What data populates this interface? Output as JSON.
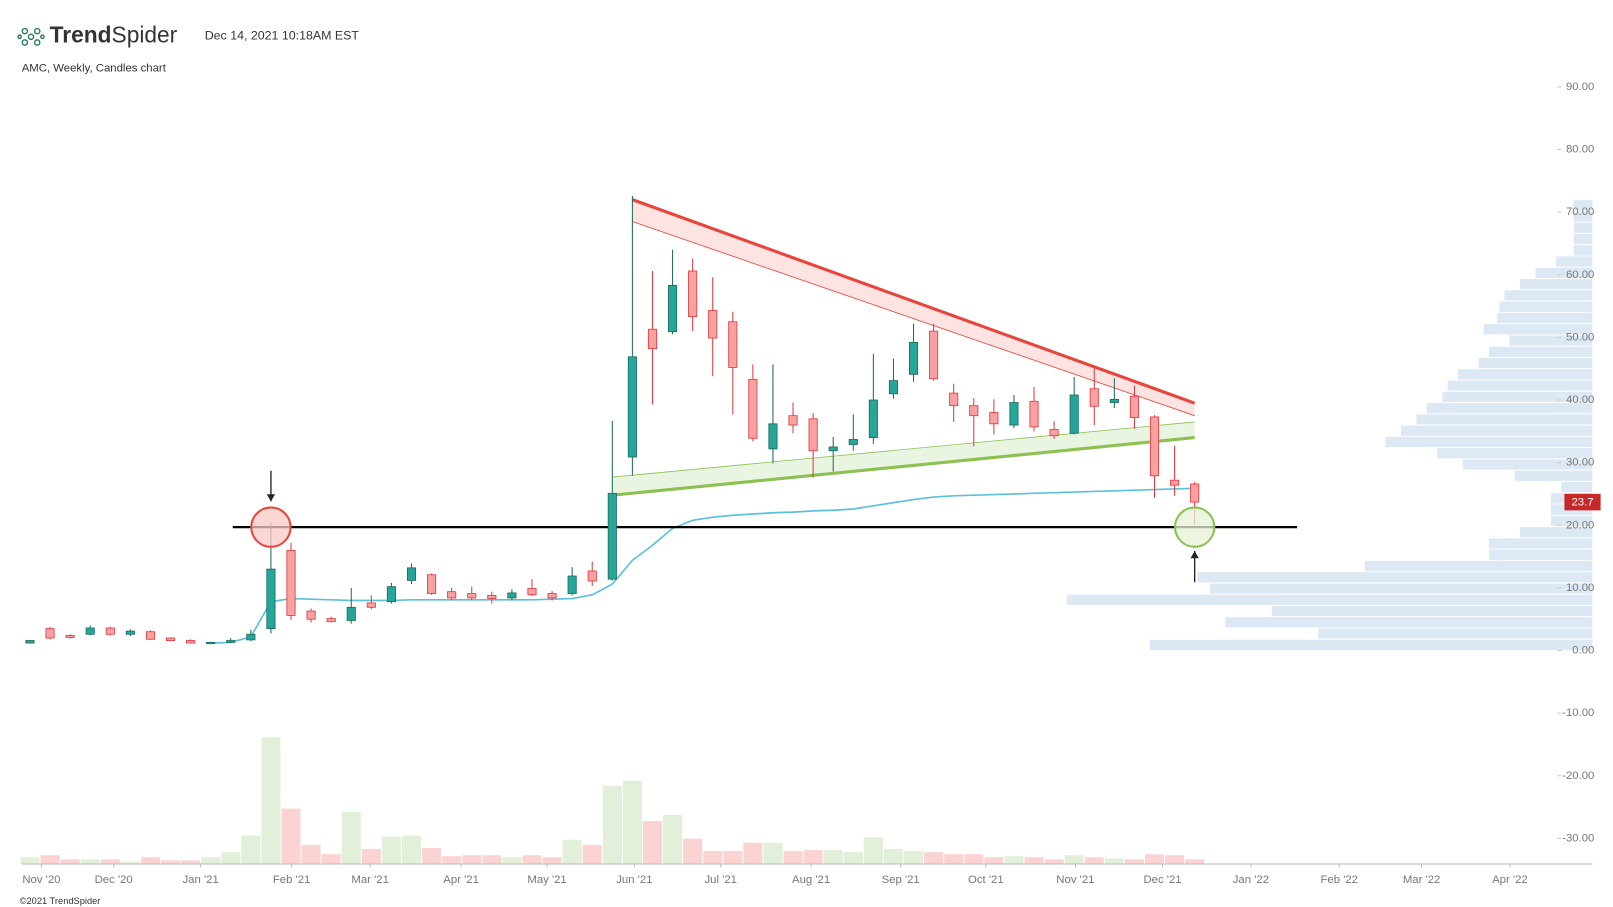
{
  "header": {
    "brand": {
      "bold": "Trend",
      "light": "Spider"
    },
    "timestamp": "Dec 14, 2021 10:18AM EST",
    "subtitle": "AMC, Weekly, Candles chart",
    "footer": "©2021 TrendSpider"
  },
  "chart_data": {
    "type": "candlestick",
    "x": [
      0,
      1,
      2,
      3,
      4,
      5,
      6,
      7,
      8,
      9,
      10,
      11,
      12,
      13,
      14,
      15,
      16,
      17,
      18,
      19,
      20,
      21,
      22,
      23,
      24,
      25,
      26,
      27,
      28,
      29,
      30,
      31,
      32,
      33,
      34,
      35,
      36,
      37,
      38,
      39,
      40,
      41,
      42,
      43,
      44,
      45,
      46,
      47,
      48,
      49,
      50,
      51,
      52,
      53,
      54,
      55,
      56,
      57,
      58
    ],
    "open": [
      1.2,
      3.5,
      2.4,
      2.6,
      3.6,
      2.6,
      3.0,
      2.0,
      1.6,
      1.1,
      1.3,
      1.7,
      3.5,
      16.0,
      6.3,
      5.1,
      4.8,
      7.6,
      7.8,
      11.2,
      12.1,
      9.4,
      9.1,
      8.8,
      8.4,
      9.9,
      9.1,
      9.1,
      12.7,
      11.4,
      30.9,
      51.3,
      50.9,
      60.6,
      54.3,
      52.5,
      43.3,
      32.2,
      37.5,
      37.0,
      31.9,
      32.9,
      34.0,
      41.0,
      44.1,
      51.0,
      41.1,
      39.1,
      38.0,
      36.0,
      39.8,
      35.3,
      34.7,
      41.8,
      39.6,
      40.6,
      37.3,
      27.2,
      26.6
    ],
    "high": [
      1.7,
      3.8,
      2.6,
      4.0,
      3.8,
      3.4,
      3.2,
      2.1,
      1.8,
      1.4,
      2.0,
      3.3,
      20.4,
      17.2,
      6.7,
      5.4,
      10.0,
      8.8,
      10.8,
      13.9,
      12.3,
      10.0,
      10.2,
      9.4,
      9.8,
      11.4,
      9.5,
      13.3,
      14.2,
      36.7,
      72.6,
      60.6,
      64.0,
      62.6,
      59.6,
      54.1,
      45.7,
      45.7,
      39.6,
      37.9,
      34.1,
      37.7,
      47.4,
      46.6,
      52.2,
      52.2,
      42.6,
      40.3,
      40.1,
      40.8,
      42.1,
      36.6,
      43.7,
      45.2,
      43.5,
      42.3,
      37.6,
      32.7,
      26.9
    ],
    "low": [
      1.1,
      1.8,
      1.9,
      2.4,
      2.4,
      2.3,
      1.7,
      1.5,
      1.1,
      1.0,
      1.2,
      1.5,
      2.7,
      4.9,
      4.5,
      4.5,
      4.3,
      6.6,
      7.5,
      10.6,
      8.9,
      8.0,
      8.1,
      7.5,
      8.0,
      8.7,
      8.0,
      8.8,
      10.3,
      11.2,
      27.9,
      39.3,
      50.5,
      51.0,
      43.8,
      37.7,
      33.4,
      29.9,
      34.7,
      27.6,
      28.6,
      31.9,
      33.0,
      40.2,
      42.9,
      43.1,
      36.5,
      32.6,
      34.5,
      35.5,
      35.0,
      33.8,
      34.5,
      36.0,
      38.7,
      35.4,
      24.4,
      24.7,
      20.1
    ],
    "close": [
      1.6,
      2.0,
      2.1,
      3.6,
      2.6,
      3.1,
      1.8,
      1.6,
      1.2,
      1.3,
      1.6,
      2.6,
      13.0,
      5.6,
      5.0,
      4.6,
      6.9,
      6.9,
      10.2,
      13.2,
      9.1,
      8.4,
      8.4,
      8.3,
      9.2,
      8.9,
      8.4,
      11.9,
      11.1,
      25.1,
      46.9,
      48.2,
      58.3,
      53.3,
      49.9,
      45.2,
      33.9,
      36.2,
      36.0,
      31.9,
      32.5,
      33.7,
      40.0,
      43.1,
      49.2,
      43.4,
      39.1,
      37.5,
      36.2,
      39.6,
      35.7,
      34.3,
      40.8,
      39.0,
      40.1,
      37.2,
      27.9,
      26.4,
      23.7
    ],
    "up_color": "#26a69a",
    "up_edge": "#1d6b5c",
    "down_color": "#f7a1a1",
    "down_edge": "#e0393e",
    "moving_average": {
      "color": "#5bc0de",
      "values": [
        null,
        null,
        null,
        null,
        null,
        null,
        null,
        null,
        null,
        1.2,
        1.3,
        2.2,
        7.8,
        8.3,
        8.2,
        8.1,
        8.0,
        8.0,
        8.0,
        8.1,
        8.1,
        8.1,
        8.1,
        8.1,
        8.1,
        8.1,
        8.2,
        8.3,
        8.9,
        10.6,
        14.4,
        16.8,
        19.5,
        20.8,
        21.3,
        21.6,
        21.8,
        22.0,
        22.1,
        22.3,
        22.4,
        22.6,
        23.1,
        23.6,
        24.1,
        24.5,
        24.7,
        24.8,
        24.9,
        25.0,
        25.1,
        25.2,
        25.3,
        25.4,
        25.5,
        25.6,
        25.7,
        25.8,
        25.9
      ]
    },
    "volume": {
      "up_color": "#e2efd9",
      "down_color": "#fbd3d3",
      "lim": [
        0,
        1350
      ],
      "values": [
        60,
        80,
        40,
        40,
        40,
        20,
        60,
        30,
        30,
        60,
        110,
        270,
        1220,
        530,
        180,
        90,
        500,
        140,
        260,
        270,
        150,
        70,
        80,
        80,
        60,
        80,
        60,
        230,
        180,
        750,
        800,
        410,
        470,
        240,
        120,
        120,
        200,
        200,
        120,
        130,
        130,
        110,
        250,
        140,
        120,
        110,
        90,
        90,
        60,
        70,
        60,
        40,
        80,
        60,
        50,
        40,
        90,
        80,
        40
      ]
    },
    "volume_profile": {
      "color": "#dce9f5",
      "lim": [
        0,
        550
      ],
      "bins": [
        0,
        1.8,
        3.6,
        5.4,
        7.2,
        9,
        10.8,
        12.6,
        14.4,
        16.2,
        18,
        19.8,
        21.6,
        23.4,
        25.2,
        27,
        28.8,
        30.6,
        32.4,
        34.2,
        36,
        37.8,
        39.6,
        41.4,
        43.2,
        45,
        46.8,
        48.6,
        50.4,
        52.2,
        54,
        55.8,
        57.6,
        59.4,
        61.2,
        63,
        64.8,
        66.6,
        68.4,
        70.2,
        72
      ],
      "values": [
        428,
        265,
        355,
        310,
        508,
        370,
        382,
        220,
        100,
        100,
        70,
        40,
        40,
        40,
        30,
        75,
        125,
        150,
        200,
        185,
        170,
        160,
        145,
        140,
        130,
        110,
        100,
        80,
        105,
        92,
        90,
        85,
        70,
        55,
        35,
        18,
        18,
        18,
        18,
        18
      ]
    },
    "channels": [
      {
        "color": "#e8453c",
        "fill": "#fde3e1",
        "line": {
          "x": [
            30,
            58
          ],
          "y": [
            72.0,
            39.5
          ]
        },
        "edge": {
          "x": [
            30,
            58
          ],
          "y": [
            68.5,
            37.5
          ]
        }
      },
      {
        "color": "#8cc152",
        "fill": "#e9f5e0",
        "line": {
          "x": [
            29,
            58
          ],
          "y": [
            24.8,
            34.0
          ]
        },
        "edge": {
          "x": [
            29,
            58
          ],
          "y": [
            27.7,
            36.5
          ]
        }
      }
    ],
    "level": {
      "y": 19.7,
      "x": [
        10.1,
        63.1
      ],
      "color": "#000000"
    },
    "circles": [
      {
        "x": 12,
        "y": 19.7,
        "fill": "#f9c9c6",
        "color": "#e8453c"
      },
      {
        "x": 58,
        "y": 19.7,
        "fill": "#e4f1d6",
        "color": "#8cc152"
      }
    ],
    "arrows": [
      {
        "x": 12,
        "from": 28.7,
        "to": 23.8
      },
      {
        "x": 58,
        "from": 10.9,
        "to": 15.9
      }
    ],
    "price_tag_color": "#c62828",
    "xlim": [
      -0.4,
      76
    ],
    "ylim": [
      -34,
      94
    ],
    "xticks": [
      {
        "value": 0.57,
        "label": "Nov '20"
      },
      {
        "value": 4.17,
        "label": "Dec '20"
      },
      {
        "value": 8.5,
        "label": "Jan '21"
      },
      {
        "value": 13.03,
        "label": "Feb '21"
      },
      {
        "value": 16.94,
        "label": "Mar '21"
      },
      {
        "value": 21.47,
        "label": "Apr '21"
      },
      {
        "value": 25.75,
        "label": "May '21"
      },
      {
        "value": 30.1,
        "label": "Jun '21"
      },
      {
        "value": 34.4,
        "label": "Jul '21"
      },
      {
        "value": 38.9,
        "label": "Aug '21"
      },
      {
        "value": 43.36,
        "label": "Sep '21"
      },
      {
        "value": 47.6,
        "label": "Oct '21"
      },
      {
        "value": 52.06,
        "label": "Nov '21"
      },
      {
        "value": 56.4,
        "label": "Dec '21"
      },
      {
        "value": 60.8,
        "label": "Jan '22"
      },
      {
        "value": 65.2,
        "label": "Feb '22"
      },
      {
        "value": 69.3,
        "label": "Mar '22"
      },
      {
        "value": 73.7,
        "label": "Apr '22"
      }
    ],
    "yticks": [
      {
        "value": 90,
        "label": "90.00"
      },
      {
        "value": 80,
        "label": "80.00"
      },
      {
        "value": 70,
        "label": "70.00"
      },
      {
        "value": 60,
        "label": "60.00"
      },
      {
        "value": 50,
        "label": "50.00"
      },
      {
        "value": 40,
        "label": "40.00"
      },
      {
        "value": 30,
        "label": "30.00"
      },
      {
        "value": 20,
        "label": "20.00"
      },
      {
        "value": 10,
        "label": "10.00"
      },
      {
        "value": 0,
        "label": "0.00"
      },
      {
        "value": -10,
        "label": "-10.00"
      },
      {
        "value": -20,
        "label": "-20.00"
      },
      {
        "value": -30,
        "label": "-30.00"
      }
    ]
  }
}
